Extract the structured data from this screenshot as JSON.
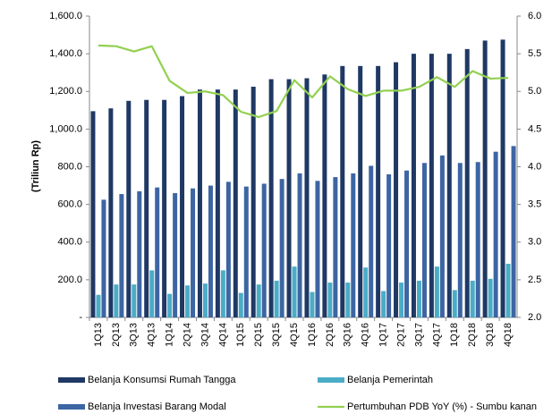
{
  "chart_data": {
    "type": "bar-line",
    "y_label": "(Triliun Rp)",
    "categories": [
      "1Q13",
      "2Q13",
      "3Q13",
      "4Q13",
      "1Q14",
      "2Q14",
      "3Q14",
      "4Q14",
      "1Q15",
      "2Q15",
      "3Q15",
      "4Q15",
      "1Q16",
      "2Q16",
      "3Q16",
      "4Q16",
      "1Q17",
      "2Q17",
      "3Q17",
      "4Q17",
      "1Q18",
      "2Q18",
      "3Q18",
      "4Q18"
    ],
    "series": [
      {
        "name": "Belanja Konsumsi Rumah Tangga",
        "type": "bar",
        "color": "#1f3864",
        "values": [
          1095,
          1110,
          1150,
          1155,
          1155,
          1175,
          1210,
          1210,
          1210,
          1225,
          1265,
          1265,
          1270,
          1290,
          1335,
          1335,
          1335,
          1355,
          1400,
          1400,
          1400,
          1425,
          1470,
          1475
        ]
      },
      {
        "name": "Belanja Pemerintah",
        "type": "bar",
        "color": "#4bacc6",
        "values": [
          120,
          175,
          175,
          250,
          125,
          170,
          180,
          250,
          130,
          175,
          195,
          270,
          135,
          185,
          185,
          265,
          140,
          185,
          195,
          270,
          145,
          195,
          205,
          285
        ]
      },
      {
        "name": "Belanja Investasi Barang Modal",
        "type": "bar",
        "color": "#3d65a3",
        "values": [
          625,
          655,
          670,
          690,
          660,
          685,
          700,
          720,
          695,
          710,
          735,
          765,
          725,
          745,
          765,
          805,
          760,
          780,
          820,
          860,
          820,
          825,
          880,
          910
        ]
      },
      {
        "name": "Pertumbuhan PDB YoY (%) - Sumbu kanan",
        "type": "line",
        "axis": "y2",
        "color": "#92d050",
        "values": [
          5.61,
          5.6,
          5.53,
          5.6,
          5.14,
          4.98,
          5.0,
          4.95,
          4.73,
          4.66,
          4.74,
          5.15,
          4.92,
          5.2,
          5.03,
          4.94,
          5.01,
          5.01,
          5.06,
          5.19,
          5.06,
          5.27,
          5.17,
          5.18
        ]
      }
    ],
    "ylim": [
      0,
      1600
    ],
    "yticks": [
      {
        "value": 0,
        "label": "-"
      },
      {
        "value": 200,
        "label": "200.0"
      },
      {
        "value": 400,
        "label": "400.0"
      },
      {
        "value": 600,
        "label": "600.0"
      },
      {
        "value": 800,
        "label": "800.0"
      },
      {
        "value": 1000,
        "label": "1,000.0"
      },
      {
        "value": 1200,
        "label": "1,200.0"
      },
      {
        "value": 1400,
        "label": "1,400.0"
      },
      {
        "value": 1600,
        "label": "1,600.0"
      }
    ],
    "y2lim": [
      2,
      6
    ],
    "y2ticks": [
      {
        "value": 2,
        "label": "2.0"
      },
      {
        "value": 2.5,
        "label": "2.5"
      },
      {
        "value": 3,
        "label": "3.0"
      },
      {
        "value": 3.5,
        "label": "3.5"
      },
      {
        "value": 4,
        "label": "4.0"
      },
      {
        "value": 4.5,
        "label": "4.5"
      },
      {
        "value": 5,
        "label": "5.0"
      },
      {
        "value": 5.5,
        "label": "5.5"
      },
      {
        "value": 6,
        "label": "6.0"
      }
    ]
  }
}
